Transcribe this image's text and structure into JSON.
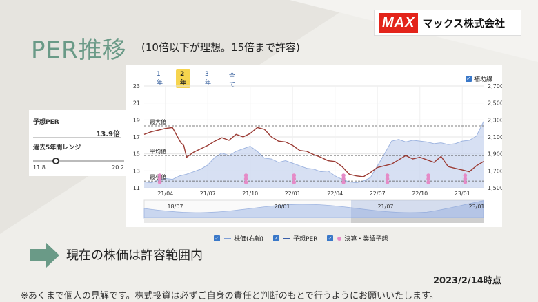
{
  "logo": {
    "brand": "MAX",
    "company": "マックス株式会社"
  },
  "title": "PER推移",
  "subtitle": "(10倍以下が理想。15倍まで許容)",
  "side": {
    "per_label": "予想PER",
    "per_value": "13.9倍",
    "range_label": "過去5年間レンジ",
    "range_min": "11.8",
    "range_max": "20.2",
    "range_fraction": 0.25
  },
  "tabs": [
    {
      "label": "1年",
      "active": false
    },
    {
      "label": "2年",
      "active": true
    },
    {
      "label": "3年",
      "active": false
    },
    {
      "label": "全て",
      "active": false
    }
  ],
  "aux_checkbox": {
    "label": "補助線",
    "checked": true
  },
  "legend": [
    {
      "label": "株価(右軸)",
      "color": "#7f9fd6"
    },
    {
      "label": "予想PER",
      "color": "#a04040"
    },
    {
      "label": "決算・業績予想",
      "color": "#e58bc7"
    }
  ],
  "chart_data": {
    "type": "line",
    "left_axis": {
      "ticks": [
        "23",
        "21",
        "19",
        "17",
        "15",
        "13",
        "11"
      ],
      "values": [
        23,
        21,
        19,
        17,
        15,
        13,
        11
      ],
      "ylim": [
        11,
        23
      ]
    },
    "right_axis": {
      "ticks": [
        "2,700",
        "2,500",
        "2,300",
        "2,100",
        "1,900",
        "1,700",
        "1,500"
      ],
      "values": [
        2700,
        2500,
        2300,
        2100,
        1900,
        1700,
        1500
      ],
      "ylim": [
        1500,
        2700
      ]
    },
    "x_ticks": [
      "21/04",
      "21/07",
      "21/10",
      "22/01",
      "22/04",
      "22/07",
      "22/10",
      "23/01"
    ],
    "x_range_months": [
      0,
      24
    ],
    "reference_lines": [
      {
        "label": "最大値",
        "value": 18.3
      },
      {
        "label": "平均値",
        "value": 14.8
      },
      {
        "label": "最小値",
        "value": 11.8
      }
    ],
    "series": [
      {
        "name": "予想PER",
        "axis": "left",
        "x": [
          0,
          0.5,
          1,
          1.5,
          2,
          2.3,
          2.6,
          2.8,
          3,
          3.5,
          4,
          4.5,
          5,
          5.5,
          6,
          6.5,
          7,
          7.5,
          8,
          8.5,
          9,
          9.5,
          10,
          10.5,
          11,
          11.5,
          12,
          12.5,
          13,
          13.5,
          14,
          14.5,
          15,
          15.5,
          16,
          16.5,
          17,
          17.5,
          18,
          18.5,
          19,
          19.5,
          20,
          20.5,
          21,
          21.5,
          22,
          22.5,
          23,
          23.5,
          24
        ],
        "values": [
          17.3,
          17.6,
          17.8,
          18.0,
          18.1,
          17.2,
          16.3,
          16.0,
          14.6,
          15.2,
          15.6,
          16.0,
          16.5,
          16.9,
          16.6,
          17.3,
          17.0,
          17.4,
          18.1,
          17.9,
          17.0,
          16.5,
          16.4,
          16.0,
          15.4,
          15.3,
          14.9,
          14.6,
          14.2,
          14.1,
          13.5,
          12.6,
          12.4,
          12.3,
          12.8,
          13.4,
          13.6,
          13.8,
          14.3,
          14.8,
          14.4,
          14.6,
          14.3,
          14.0,
          14.7,
          13.5,
          13.3,
          13.1,
          12.9,
          13.6,
          14.1
        ]
      },
      {
        "name": "株価",
        "axis": "right",
        "x": [
          0,
          0.5,
          1,
          1.5,
          2,
          2.5,
          3,
          3.5,
          4,
          4.5,
          5,
          5.5,
          6,
          6.5,
          7,
          7.5,
          8,
          8.5,
          9,
          9.5,
          10,
          10.5,
          11,
          11.5,
          12,
          12.5,
          13,
          13.5,
          14,
          14.5,
          15,
          15.5,
          16,
          16.5,
          17,
          17.5,
          18,
          18.5,
          19,
          19.5,
          20,
          20.5,
          21,
          21.5,
          22,
          22.5,
          23,
          23.5,
          24
        ],
        "values": [
          1570,
          1560,
          1590,
          1610,
          1600,
          1640,
          1660,
          1690,
          1720,
          1770,
          1860,
          1910,
          1880,
          1930,
          1960,
          1990,
          1930,
          1850,
          1840,
          1800,
          1820,
          1790,
          1760,
          1730,
          1720,
          1690,
          1700,
          1640,
          1600,
          1570,
          1560,
          1580,
          1620,
          1760,
          1900,
          2050,
          2070,
          2040,
          2060,
          2050,
          2040,
          2020,
          2030,
          2010,
          2020,
          2050,
          2060,
          2110,
          2280
        ]
      }
    ],
    "events": {
      "name": "決算・業績予想",
      "x": [
        1.1,
        7.2,
        10.6,
        14.1,
        17.2,
        20.1,
        22.7
      ]
    }
  },
  "navigator": {
    "labels": [
      "18/07",
      "20/01",
      "21/07",
      "23/01"
    ]
  },
  "status": "現在の株価は許容範囲内",
  "date": "2023/2/14時点",
  "disclaimer": "※あくまで個人の見解です。株式投資は必ずご自身の責任と判断のもとで行うようにお願いいたします。"
}
